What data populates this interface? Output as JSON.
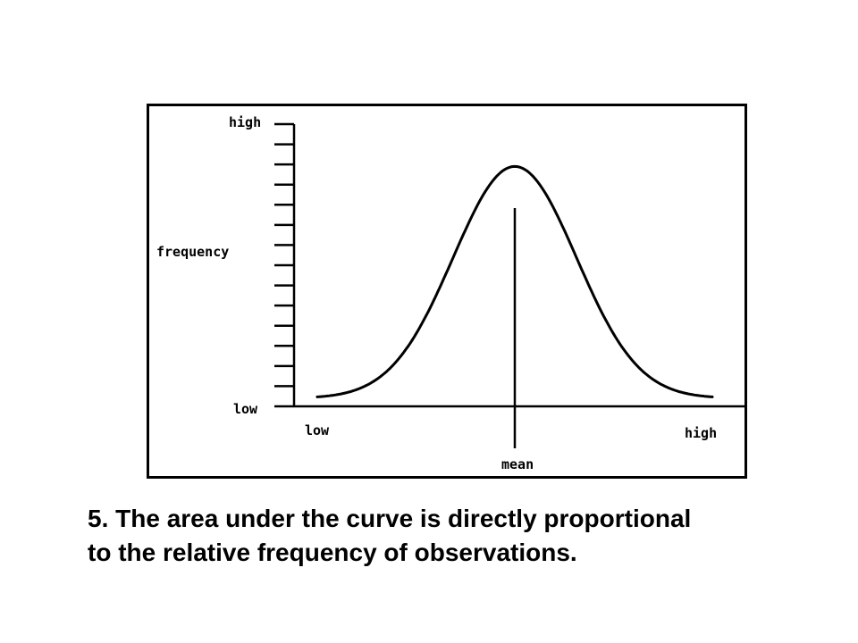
{
  "chart_data": {
    "type": "line",
    "title": "",
    "ylabel": "frequency",
    "xlabel": "",
    "y_ticks": {
      "top": "high",
      "bottom": "low"
    },
    "x_ticks": {
      "left": "low",
      "center": "mean",
      "right": "high"
    },
    "y_tick_count": 15,
    "series": [
      {
        "shape": "normal-curve",
        "mean": 0,
        "std": 1,
        "x_range": [
          -3.2,
          3.2
        ],
        "peak": 0.85
      }
    ],
    "grid": false,
    "legend": "none",
    "colors": {
      "line": "#000000",
      "background": "#ffffff"
    }
  },
  "caption": {
    "line1": "5. The area under the curve is directly proportional",
    "line2": "to the relative frequency of observations."
  }
}
